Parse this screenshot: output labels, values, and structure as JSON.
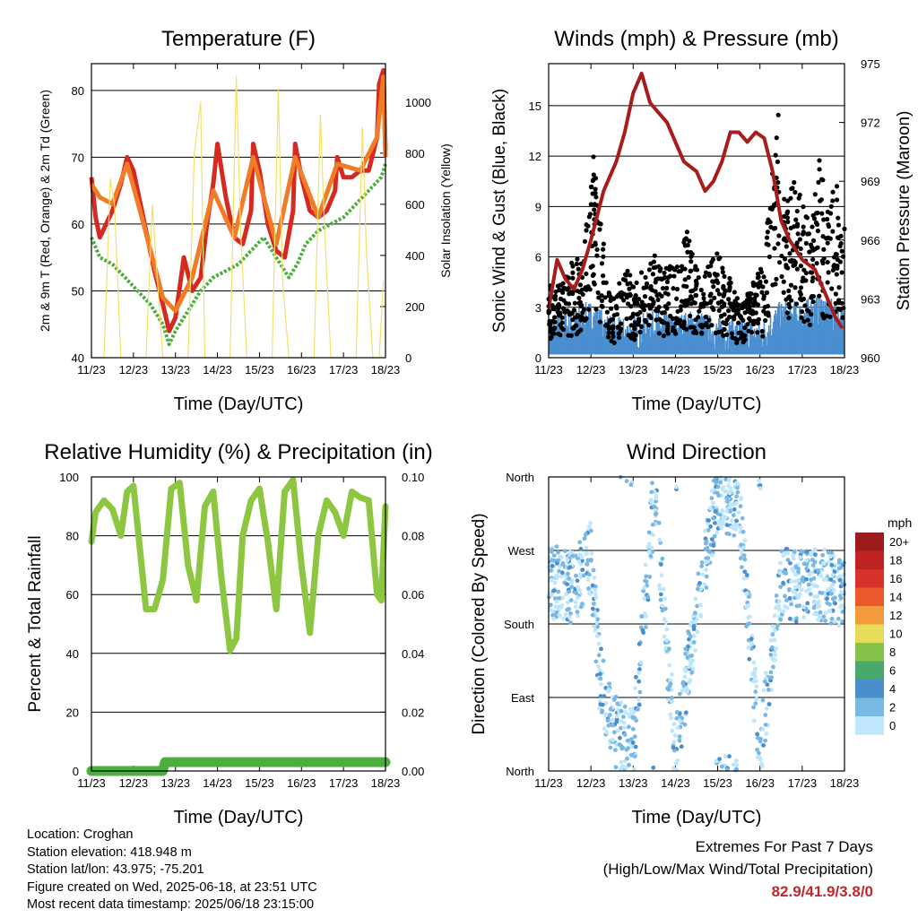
{
  "chart_data": [
    {
      "type": "line",
      "title": "Temperature (F)",
      "xlabel": "Time (Day/UTC)",
      "ylabel": "2m & 9m T (Red, Orange) & 2m Td (Green)",
      "ylabel_right": "Solar Insolation (Yellow)",
      "categories": [
        "11/23",
        "12/23",
        "13/23",
        "14/23",
        "15/23",
        "16/23",
        "17/23",
        "18/23"
      ],
      "ylim": [
        40,
        84
      ],
      "yticks": [
        "40",
        "50",
        "60",
        "70",
        "80"
      ],
      "ylim_right": [
        0,
        1150
      ],
      "yticks_right": [
        "0",
        "200",
        "400",
        "600",
        "800",
        "1000"
      ],
      "series": [
        {
          "name": "2m T",
          "color": "#d42a22",
          "x": [
            0,
            0.1,
            0.2,
            0.35,
            0.5,
            0.7,
            0.85,
            1.0,
            1.2,
            1.5,
            1.7,
            1.85,
            2.0,
            2.2,
            2.4,
            2.5,
            2.6,
            2.75,
            2.9,
            3.0,
            3.2,
            3.4,
            3.6,
            3.8,
            3.85,
            4.0,
            4.2,
            4.4,
            4.6,
            4.8,
            4.85,
            5.0,
            5.2,
            5.4,
            5.6,
            5.8,
            5.85,
            6.0,
            6.2,
            6.4,
            6.6,
            6.8,
            6.85,
            6.95,
            7.0
          ],
          "values": [
            67,
            61,
            58,
            60,
            62,
            66,
            70,
            68,
            62,
            53,
            48,
            44,
            46,
            55,
            50,
            51,
            52,
            60,
            66,
            72,
            64,
            58,
            57,
            62,
            72,
            68,
            60,
            56,
            55,
            62,
            72,
            67,
            62,
            61,
            62,
            65,
            70,
            67,
            67,
            68,
            68,
            73,
            81,
            83,
            71
          ]
        },
        {
          "name": "9m T",
          "color": "#f07c28",
          "x": [
            0,
            0.2,
            0.5,
            0.85,
            1.2,
            1.7,
            2.0,
            2.4,
            2.9,
            3.4,
            3.85,
            4.4,
            4.85,
            5.4,
            5.85,
            6.4,
            6.8,
            6.95,
            7.0
          ],
          "values": [
            66,
            64,
            63,
            69,
            61,
            49,
            47,
            52,
            65,
            58,
            70,
            57,
            70,
            61,
            69,
            68,
            73,
            82,
            70
          ]
        },
        {
          "name": "2m Td",
          "color": "#4caf3c",
          "x": [
            0,
            0.2,
            0.5,
            0.8,
            1.1,
            1.4,
            1.7,
            1.85,
            2.0,
            2.3,
            2.6,
            2.9,
            3.2,
            3.5,
            3.8,
            4.1,
            4.4,
            4.7,
            4.9,
            5.1,
            5.4,
            5.7,
            6.0,
            6.3,
            6.6,
            6.9,
            7.0
          ],
          "values": [
            58,
            55,
            54,
            52,
            50,
            48,
            45,
            42,
            44,
            47,
            50,
            52,
            53,
            54,
            56,
            58,
            55,
            52,
            54,
            57,
            59,
            60,
            61,
            63,
            65,
            67,
            69
          ]
        },
        {
          "name": "Solar Insolation",
          "color": "#f3e06a",
          "axis": "right",
          "x": [
            0,
            0.3,
            0.45,
            0.55,
            0.7,
            1.3,
            1.45,
            1.55,
            1.7,
            2.3,
            2.45,
            2.6,
            2.7,
            3.3,
            3.45,
            3.55,
            3.7,
            4.3,
            4.45,
            4.55,
            4.7,
            5.3,
            5.45,
            5.55,
            5.7,
            6.3,
            6.45,
            6.55,
            6.7,
            6.85,
            6.95
          ],
          "values": [
            0,
            0,
            700,
            600,
            0,
            0,
            600,
            350,
            0,
            0,
            800,
            1000,
            0,
            0,
            1100,
            500,
            0,
            0,
            1050,
            300,
            0,
            0,
            950,
            500,
            0,
            0,
            900,
            400,
            0,
            0,
            300
          ]
        }
      ]
    },
    {
      "type": "scatter",
      "title": "Winds (mph) & Pressure (mb)",
      "xlabel": "Time (Day/UTC)",
      "ylabel": "Sonic Wind & Gust (Blue, Black)",
      "ylabel_right": "Station Pressure (Maroon)",
      "categories": [
        "11/23",
        "12/23",
        "13/23",
        "14/23",
        "15/23",
        "16/23",
        "17/23",
        "18/23"
      ],
      "ylim": [
        0,
        17.5
      ],
      "yticks": [
        "0",
        "3",
        "6",
        "9",
        "12",
        "15"
      ],
      "ylim_right": [
        960,
        975
      ],
      "yticks_right": [
        "960",
        "963",
        "966",
        "969",
        "972",
        "975"
      ],
      "series": [
        {
          "name": "Station Pressure",
          "color": "#a81c1c",
          "axis": "right",
          "x": [
            0,
            0.2,
            0.4,
            0.6,
            0.8,
            1.0,
            1.3,
            1.6,
            1.8,
            2.0,
            2.2,
            2.4,
            2.6,
            2.8,
            3.0,
            3.2,
            3.5,
            3.7,
            3.9,
            4.1,
            4.3,
            4.5,
            4.7,
            4.9,
            5.1,
            5.3,
            5.5,
            5.7,
            6.0,
            6.3,
            6.6,
            6.8,
            6.95
          ],
          "values": [
            962.5,
            965,
            964,
            963.5,
            964.5,
            966,
            968.5,
            970,
            971.5,
            973.5,
            974.5,
            973,
            972.5,
            972,
            971,
            970,
            969.5,
            968.5,
            969,
            970,
            971.5,
            971.5,
            971,
            971.5,
            971.2,
            969.5,
            967,
            966,
            965,
            964.5,
            963,
            962,
            961.5
          ]
        },
        {
          "name": "Gust",
          "color": "#000000",
          "x": [
            0.2,
            0.5,
            0.8,
            1.0,
            1.05,
            1.2,
            1.5,
            1.8,
            2.1,
            2.4,
            2.7,
            3.0,
            3.3,
            3.6,
            3.9,
            4.2,
            4.5,
            4.8,
            5.1,
            5.4,
            5.6,
            5.8,
            6.0,
            6.2,
            6.4,
            6.6,
            6.8,
            6.9
          ],
          "values": [
            4,
            5,
            6,
            9,
            13,
            8,
            3,
            5,
            4,
            6,
            5,
            5,
            7,
            4,
            6,
            5,
            3,
            4,
            5.2,
            15,
            8,
            10,
            9,
            7,
            11,
            8,
            10,
            7
          ]
        },
        {
          "name": "Wind",
          "color": "#4a8fd0",
          "x": [
            0,
            0.5,
            1.0,
            1.5,
            2.0,
            2.5,
            3.0,
            3.5,
            4.0,
            4.5,
            5.0,
            5.5,
            6.0,
            6.5,
            7.0
          ],
          "values": [
            1,
            1.5,
            2,
            1,
            1,
            1.5,
            1.2,
            1.5,
            1,
            1,
            0.8,
            2,
            2,
            2.5,
            1.5
          ]
        }
      ]
    },
    {
      "type": "line",
      "title": "Relative Humidity (%) & Precipitation (in)",
      "xlabel": "Time (Day/UTC)",
      "ylabel": "Percent & Total Rainfall",
      "categories": [
        "11/23",
        "12/23",
        "13/23",
        "14/23",
        "15/23",
        "16/23",
        "17/23",
        "18/23"
      ],
      "ylim": [
        0,
        100
      ],
      "yticks": [
        "0",
        "20",
        "40",
        "60",
        "80",
        "100"
      ],
      "ylim_right": [
        0,
        0.1
      ],
      "yticks_right": [
        "0.00",
        "0.02",
        "0.04",
        "0.06",
        "0.08",
        "0.10"
      ],
      "series": [
        {
          "name": "Relative Humidity",
          "color": "#8dc641",
          "x": [
            0,
            0.1,
            0.3,
            0.5,
            0.7,
            0.85,
            1.0,
            1.3,
            1.5,
            1.7,
            1.9,
            2.1,
            2.3,
            2.5,
            2.7,
            2.9,
            3.1,
            3.3,
            3.45,
            3.6,
            3.8,
            4.0,
            4.2,
            4.4,
            4.6,
            4.8,
            5.0,
            5.2,
            5.4,
            5.6,
            5.8,
            6.0,
            6.2,
            6.4,
            6.6,
            6.8,
            6.9,
            7.0
          ],
          "values": [
            78,
            88,
            92,
            89,
            80,
            95,
            97,
            55,
            55,
            65,
            96,
            98,
            70,
            58,
            90,
            95,
            65,
            41,
            45,
            80,
            92,
            96,
            78,
            55,
            95,
            99,
            70,
            47,
            80,
            92,
            88,
            80,
            95,
            93,
            92,
            60,
            58,
            90
          ]
        },
        {
          "name": "Total Precipitation",
          "color": "#4caf3c",
          "axis": "right",
          "x": [
            0,
            1.7,
            1.75,
            7.0
          ],
          "values": [
            0.0,
            0.0,
            0.003,
            0.003
          ]
        }
      ]
    },
    {
      "type": "scatter",
      "title": "Wind Direction",
      "xlabel": "Time (Day/UTC)",
      "ylabel": "Direction (Colored By Speed)",
      "categories": [
        "11/23",
        "12/23",
        "13/23",
        "14/23",
        "15/23",
        "16/23",
        "17/23",
        "18/23"
      ],
      "yticks": [
        "North",
        "East",
        "South",
        "West",
        "North"
      ],
      "ylim": [
        0,
        360
      ],
      "legend": {
        "title": "mph",
        "labels": [
          "20+",
          "18",
          "16",
          "14",
          "12",
          "10",
          "8",
          "6",
          "4",
          "2",
          "0"
        ],
        "colors": [
          "#9b1c1c",
          "#be2424",
          "#d8322a",
          "#ec5a2c",
          "#f39a3c",
          "#e6dc58",
          "#86c24a",
          "#48aa6a",
          "#4a8fcc",
          "#7ab8e4",
          "#bfe6fa"
        ]
      },
      "series": [
        {
          "name": "Direction",
          "x": [
            0.2,
            0.5,
            0.8,
            1.0,
            1.2,
            1.5,
            2.0,
            2.5,
            3.0,
            3.5,
            4.0,
            4.5,
            5.0,
            5.5,
            6.0,
            6.5,
            7.0
          ],
          "values": [
            230,
            225,
            240,
            260,
            120,
            50,
            30,
            340,
            20,
            200,
            340,
            330,
            20,
            230,
            225,
            230,
            215
          ]
        }
      ]
    }
  ],
  "info": {
    "location": "Location: Croghan",
    "elevation": "Station elevation: 418.948 m",
    "latlon": "Station lat/lon: 43.975; -75.201",
    "created": "Figure created on Wed, 2025-06-18, at 23:51 UTC",
    "recent": "Most recent data timestamp: 2025/06/18 23:15:00"
  },
  "extremes": {
    "heading1": "Extremes For Past 7 Days",
    "heading2": "(High/Low/Max Wind/Total Precipitation)",
    "values": "82.9/41.9/3.8/0"
  }
}
